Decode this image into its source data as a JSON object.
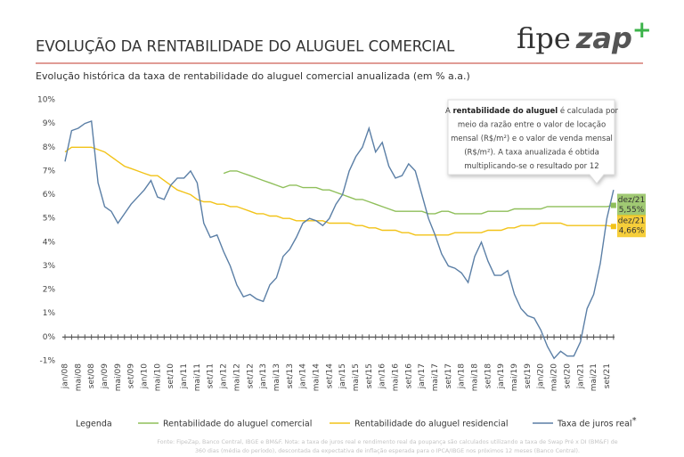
{
  "header": {
    "title": "EVOLUÇÃO DA RENTABILIDADE DO ALUGUEL COMERCIAL",
    "logo": [
      "fipe",
      "zap",
      "+"
    ]
  },
  "chart_data": {
    "type": "line",
    "subtitle": "Evolução histórica da taxa de rentabilidade do aluguel comercial anualizada (em % a.a.)",
    "categories": [
      "jan/08",
      null,
      "mai/08",
      null,
      "set/08",
      null,
      "jan/09",
      null,
      "mai/09",
      null,
      "set/09",
      null,
      "jan/10",
      null,
      "mai/10",
      null,
      "set/10",
      null,
      "jan/11",
      null,
      "mai/11",
      null,
      "set/11",
      null,
      "jan/12",
      null,
      "mai/12",
      null,
      "set/12",
      null,
      "jan/13",
      null,
      "mai/13",
      null,
      "set/13",
      null,
      "jan/14",
      null,
      "mai/14",
      null,
      "set/14",
      null,
      "jan/15",
      null,
      "mai/15",
      null,
      "set/15",
      null,
      "jan/16",
      null,
      "mai/16",
      null,
      "set/16",
      null,
      "jan/17",
      null,
      "mai/17",
      null,
      "set/17",
      null,
      "jan/18",
      null,
      "mai/18",
      null,
      "set/18",
      null,
      "jan/19",
      null,
      "mai/19",
      null,
      "set/19",
      null,
      "jan/20",
      null,
      "mai/20",
      null,
      "set/20",
      null,
      "jan/21",
      null,
      "mai/21",
      null,
      "set/21",
      null
    ],
    "ylim": [
      -1,
      10
    ],
    "yticks": [
      {
        "value": -1,
        "label": "-1%"
      },
      {
        "value": 0,
        "label": "0%"
      },
      {
        "value": 1,
        "label": "1%"
      },
      {
        "value": 2,
        "label": "2%"
      },
      {
        "value": 3,
        "label": "3%"
      },
      {
        "value": 4,
        "label": "4%"
      },
      {
        "value": 5,
        "label": "5%"
      },
      {
        "value": 6,
        "label": "6%"
      },
      {
        "value": 7,
        "label": "7%"
      },
      {
        "value": 8,
        "label": "8%"
      },
      {
        "value": 9,
        "label": "9%"
      },
      {
        "value": 10,
        "label": "10%"
      }
    ],
    "grid": false,
    "legend_title": "Legenda",
    "end_date": "dez/21",
    "series": [
      {
        "name": "Rentabilidade do aluguel comercial",
        "color": "#8fbf5a",
        "end_label": "5,55%",
        "label_bg": "#8fbf5a",
        "values": [
          null,
          null,
          null,
          null,
          null,
          null,
          null,
          null,
          null,
          null,
          null,
          null,
          null,
          null,
          null,
          null,
          null,
          null,
          null,
          null,
          null,
          null,
          null,
          null,
          6.9,
          7.0,
          7.0,
          6.9,
          6.8,
          6.7,
          6.6,
          6.5,
          6.4,
          6.3,
          6.4,
          6.4,
          6.3,
          6.3,
          6.3,
          6.2,
          6.2,
          6.1,
          6.0,
          5.9,
          5.8,
          5.8,
          5.7,
          5.6,
          5.5,
          5.4,
          5.3,
          5.3,
          5.3,
          5.3,
          5.3,
          5.2,
          5.2,
          5.3,
          5.3,
          5.2,
          5.2,
          5.2,
          5.2,
          5.2,
          5.3,
          5.3,
          5.3,
          5.3,
          5.4,
          5.4,
          5.4,
          5.4,
          5.4,
          5.5,
          5.5,
          5.5,
          5.5,
          5.5,
          5.5,
          5.5,
          5.5,
          5.5,
          5.5,
          5.55
        ]
      },
      {
        "name": "Rentabilidade do aluguel residencial",
        "color": "#f2c318",
        "end_label": "4,66%",
        "label_bg": "#f5c518",
        "values": [
          7.8,
          8.0,
          8.0,
          8.0,
          8.0,
          7.9,
          7.8,
          7.6,
          7.4,
          7.2,
          7.1,
          7.0,
          6.9,
          6.8,
          6.8,
          6.6,
          6.4,
          6.2,
          6.1,
          6.0,
          5.8,
          5.7,
          5.7,
          5.6,
          5.6,
          5.5,
          5.5,
          5.4,
          5.3,
          5.2,
          5.2,
          5.1,
          5.1,
          5.0,
          5.0,
          4.9,
          4.9,
          4.9,
          4.9,
          4.9,
          4.8,
          4.8,
          4.8,
          4.8,
          4.7,
          4.7,
          4.6,
          4.6,
          4.5,
          4.5,
          4.5,
          4.4,
          4.4,
          4.3,
          4.3,
          4.3,
          4.3,
          4.3,
          4.3,
          4.4,
          4.4,
          4.4,
          4.4,
          4.4,
          4.5,
          4.5,
          4.5,
          4.6,
          4.6,
          4.7,
          4.7,
          4.7,
          4.8,
          4.8,
          4.8,
          4.8,
          4.7,
          4.7,
          4.7,
          4.7,
          4.7,
          4.7,
          4.7,
          4.66
        ]
      },
      {
        "name": "Taxa de juros real",
        "marker": "*",
        "color": "#5b7fa6",
        "values": [
          7.4,
          8.7,
          8.8,
          9.0,
          9.1,
          6.5,
          5.5,
          5.3,
          4.8,
          5.2,
          5.6,
          5.9,
          6.2,
          6.6,
          5.9,
          5.8,
          6.4,
          6.7,
          6.7,
          7.0,
          6.5,
          4.8,
          4.2,
          4.3,
          3.6,
          3.0,
          2.2,
          1.7,
          1.8,
          1.6,
          1.5,
          2.2,
          2.5,
          3.4,
          3.7,
          4.2,
          4.8,
          5.0,
          4.9,
          4.7,
          5.0,
          5.6,
          6.0,
          7.0,
          7.6,
          8.0,
          8.8,
          7.8,
          8.2,
          7.2,
          6.7,
          6.8,
          7.3,
          7.0,
          6.0,
          5.0,
          4.3,
          3.5,
          3.0,
          2.9,
          2.7,
          2.3,
          3.4,
          4.0,
          3.2,
          2.6,
          2.6,
          2.8,
          1.8,
          1.2,
          0.9,
          0.8,
          0.3,
          -0.4,
          -0.9,
          -0.6,
          -0.8,
          -0.8,
          -0.2,
          1.2,
          1.8,
          3.1,
          5.0,
          6.2
        ]
      }
    ]
  },
  "note": {
    "first": [
      "A ",
      "rentabilidade do aluguel",
      " é calculada por"
    ],
    "lines": [
      "meio da razão entre o valor de locação",
      "mensal (R$/m²) e o valor de venda mensal",
      "(R$/m²).  A taxa anualizada é obtida",
      "multiplicando-se  o resultado por 12"
    ]
  },
  "footer": [
    "Fonte: FipeZap, Banco Central, IBGE e BM&F. Nota: a taxa de juros real e rendimento real da poupança são calculados utilizando a taxa de Swap Pré x DI (BM&F) de",
    "360 dias (média do período), descontada da expectativa de inflação esperada para o IPCA/IBGE nos próximos 12 meses (Banco Central)."
  ]
}
